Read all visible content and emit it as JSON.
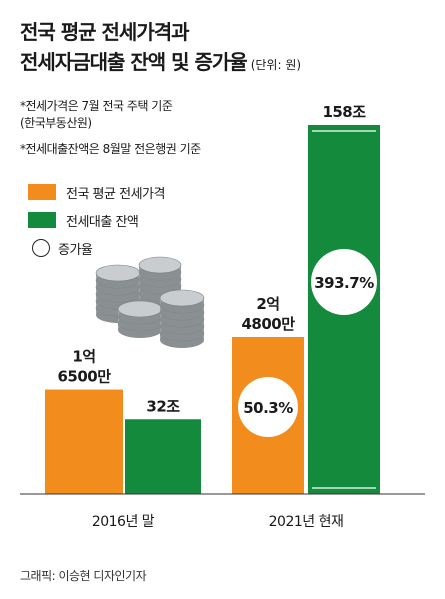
{
  "title_line1": "전국 평균 전세가격과",
  "title_line2": "전세자금대출 잔액 및 증가율",
  "unit_label": "(단위: 원)",
  "note1_line1": "*전세가격은 7월 전국 주택 기준",
  "note1_line2": "(한국부동산원)",
  "note2": "*전세대출잔액은 8월말 전은행권 기준",
  "legend": [
    {
      "label": "전국 평균 전세가격",
      "color": "#f28c1c",
      "shape": "square"
    },
    {
      "label": "전세대출 잔액",
      "color": "#148a3c",
      "shape": "square"
    },
    {
      "label": "증가율",
      "color": "#ffffff",
      "shape": "circle"
    }
  ],
  "credit": "그래픽: 이승현 디자인기자",
  "colors": {
    "orange": "#f28c1c",
    "green": "#148a3c",
    "axis": "#333333"
  },
  "decoration": "coin-stacks-icon",
  "chart_data": {
    "type": "bar",
    "categories": [
      "2016년 말",
      "2021년 현재"
    ],
    "series": [
      {
        "name": "전국 평균 전세가격",
        "values": [
          165000000,
          248000000
        ],
        "labels": [
          [
            "1억",
            "6500만"
          ],
          [
            "2억",
            "4800만"
          ]
        ],
        "color": "#f28c1c"
      },
      {
        "name": "전세대출 잔액",
        "values": [
          32,
          158
        ],
        "labels": [
          [
            "32조"
          ],
          [
            "158조"
          ]
        ],
        "color": "#148a3c"
      }
    ],
    "growth_rates": {
      "전국 평균 전세가격": "50.3%",
      "전세대출 잔액": "393.7%"
    }
  }
}
